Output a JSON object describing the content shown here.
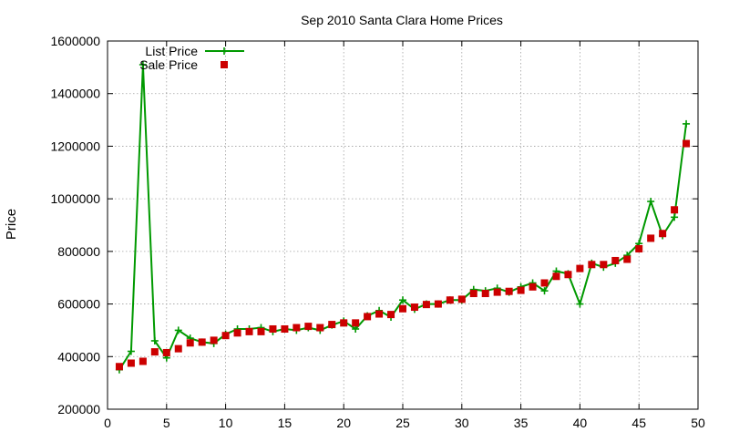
{
  "chart_data": {
    "type": "line",
    "title": "Sep 2010 Santa Clara Home Prices",
    "xlabel": "",
    "ylabel": "Price",
    "xlim": [
      0,
      50
    ],
    "ylim": [
      200000,
      1600000
    ],
    "xticks": [
      0,
      5,
      10,
      15,
      20,
      25,
      30,
      35,
      40,
      45,
      50
    ],
    "yticks": [
      200000,
      400000,
      600000,
      800000,
      1000000,
      1200000,
      1400000,
      1600000
    ],
    "grid": true,
    "legend_position": "top-left",
    "series": [
      {
        "name": "List Price",
        "style": "line with plus markers",
        "color": "#009900",
        "x": [
          1,
          2,
          3,
          4,
          5,
          6,
          7,
          8,
          9,
          10,
          11,
          12,
          13,
          14,
          15,
          16,
          17,
          18,
          19,
          20,
          21,
          22,
          23,
          24,
          25,
          26,
          27,
          28,
          29,
          30,
          31,
          32,
          33,
          34,
          35,
          36,
          37,
          38,
          39,
          40,
          41,
          42,
          43,
          44,
          45,
          46,
          47,
          48,
          49
        ],
        "values": [
          350000,
          420000,
          1510000,
          460000,
          395000,
          500000,
          470000,
          455000,
          450000,
          485000,
          505000,
          505000,
          510000,
          495000,
          505000,
          500000,
          510000,
          500000,
          520000,
          535000,
          505000,
          555000,
          575000,
          550000,
          615000,
          580000,
          600000,
          600000,
          615000,
          615000,
          655000,
          650000,
          660000,
          645000,
          665000,
          680000,
          650000,
          725000,
          715000,
          600000,
          755000,
          740000,
          755000,
          785000,
          830000,
          990000,
          860000,
          930000,
          1285000
        ]
      },
      {
        "name": "Sale Price",
        "style": "square markers",
        "color": "#cc0000",
        "x": [
          1,
          2,
          3,
          4,
          5,
          6,
          7,
          8,
          9,
          10,
          11,
          12,
          13,
          14,
          15,
          16,
          17,
          18,
          19,
          20,
          21,
          22,
          23,
          24,
          25,
          26,
          27,
          28,
          29,
          30,
          31,
          32,
          33,
          34,
          35,
          36,
          37,
          38,
          39,
          40,
          41,
          42,
          43,
          44,
          45,
          46,
          47,
          48,
          49
        ],
        "values": [
          362000,
          375000,
          382000,
          418000,
          415000,
          430000,
          452000,
          455000,
          462000,
          480000,
          490000,
          495000,
          495000,
          505000,
          505000,
          510000,
          515000,
          510000,
          522000,
          528000,
          528000,
          552000,
          562000,
          560000,
          582000,
          588000,
          598000,
          600000,
          615000,
          618000,
          640000,
          640000,
          645000,
          648000,
          652000,
          665000,
          680000,
          705000,
          712000,
          735000,
          750000,
          750000,
          765000,
          770000,
          810000,
          850000,
          868000,
          958000,
          1210000
        ]
      }
    ]
  }
}
